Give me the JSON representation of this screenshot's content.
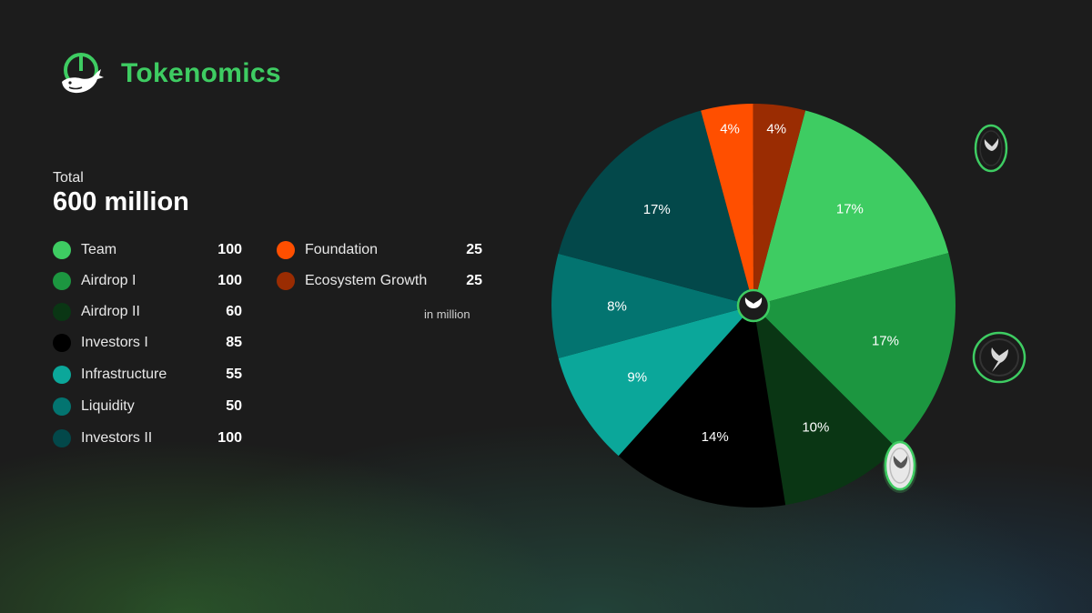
{
  "header": {
    "title": "Tokenomics",
    "logo_icon": "whale-tail-icon"
  },
  "total": {
    "label": "Total",
    "value": "600 million"
  },
  "legend_left": [
    {
      "label": "Team",
      "value": "100",
      "color": "#3ecc62"
    },
    {
      "label": "Airdrop I",
      "value": "100",
      "color": "#1c9640"
    },
    {
      "label": "Airdrop II",
      "value": "60",
      "color": "#0a3614"
    },
    {
      "label": "Investors I",
      "value": "85",
      "color": "#000000"
    },
    {
      "label": "Infrastructure",
      "value": "55",
      "color": "#0ba79a"
    },
    {
      "label": "Liquidity",
      "value": "50",
      "color": "#037470"
    },
    {
      "label": "Investors II",
      "value": "100",
      "color": "#03484a"
    }
  ],
  "legend_right": [
    {
      "label": "Foundation",
      "value": "25",
      "color": "#ff4f00"
    },
    {
      "label": "Ecosystem Growth",
      "value": "25",
      "color": "#9a2c02"
    }
  ],
  "unit_note": "in million",
  "chart_data": {
    "type": "pie",
    "title": "Tokenomics",
    "unit": "million",
    "total": 600,
    "slices": [
      {
        "name": "Team",
        "value": 100,
        "label": "17%",
        "color": "#3ecc62"
      },
      {
        "name": "Airdrop I",
        "value": 100,
        "label": "17%",
        "color": "#1c9640"
      },
      {
        "name": "Airdrop II",
        "value": 60,
        "label": "10%",
        "color": "#0a3614"
      },
      {
        "name": "Investors I",
        "value": 85,
        "label": "14%",
        "color": "#000000"
      },
      {
        "name": "Infrastructure",
        "value": 55,
        "label": "9%",
        "color": "#0ba79a"
      },
      {
        "name": "Liquidity",
        "value": 50,
        "label": "8%",
        "color": "#037470"
      },
      {
        "name": "Investors II",
        "value": 100,
        "label": "17%",
        "color": "#03484a"
      },
      {
        "name": "Foundation",
        "value": 25,
        "label": "4%",
        "color": "#ff4f00"
      },
      {
        "name": "Ecosystem Growth",
        "value": 25,
        "label": "4%",
        "color": "#9a2c02"
      }
    ],
    "center_icon": "whale-tail-icon"
  }
}
